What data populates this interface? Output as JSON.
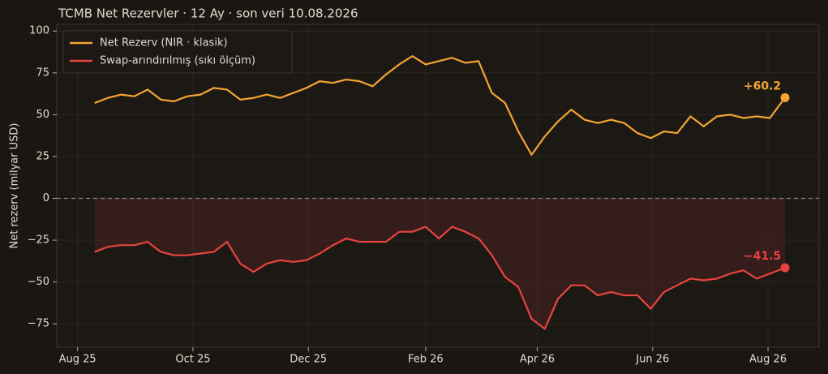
{
  "chart_data": {
    "type": "line",
    "title": "TCMB Net Rezervler · 12 Ay · son veri 10.08.2026",
    "y_label": "Net rezerv (milyar USD)",
    "x": [
      "2025-08-10",
      "2025-08-17",
      "2025-08-24",
      "2025-08-31",
      "2025-09-07",
      "2025-09-14",
      "2025-09-21",
      "2025-09-28",
      "2025-10-05",
      "2025-10-12",
      "2025-10-19",
      "2025-10-26",
      "2025-11-02",
      "2025-11-09",
      "2025-11-16",
      "2025-11-23",
      "2025-11-30",
      "2025-12-07",
      "2025-12-14",
      "2025-12-21",
      "2025-12-28",
      "2026-01-04",
      "2026-01-11",
      "2026-01-18",
      "2026-01-25",
      "2026-02-01",
      "2026-02-08",
      "2026-02-15",
      "2026-02-22",
      "2026-03-01",
      "2026-03-08",
      "2026-03-15",
      "2026-03-22",
      "2026-03-29",
      "2026-04-05",
      "2026-04-12",
      "2026-04-19",
      "2026-04-26",
      "2026-05-03",
      "2026-05-10",
      "2026-05-17",
      "2026-05-24",
      "2026-05-31",
      "2026-06-07",
      "2026-06-14",
      "2026-06-21",
      "2026-06-28",
      "2026-07-05",
      "2026-07-12",
      "2026-07-19",
      "2026-07-26",
      "2026-08-02",
      "2026-08-10"
    ],
    "series": [
      {
        "name": "Net Rezerv (NIR · klasik)",
        "color": "#f5a431",
        "values": [
          57,
          60,
          62,
          61,
          65,
          59,
          58,
          61,
          62,
          66,
          65,
          59,
          60,
          62,
          60,
          63,
          66,
          70,
          69,
          71,
          70,
          67,
          74,
          80,
          85,
          80,
          82,
          84,
          81,
          82,
          63,
          57,
          40,
          26,
          37,
          46,
          53,
          47,
          45,
          47,
          45,
          39,
          36,
          40,
          39,
          49,
          43,
          49,
          50,
          48,
          49,
          48,
          60.2
        ],
        "value_labels": [
          null,
          null,
          null,
          null,
          null,
          null,
          null,
          null,
          null,
          null,
          null,
          null,
          null,
          null,
          null,
          null,
          null,
          null,
          null,
          null,
          null,
          null,
          null,
          null,
          null,
          null,
          null,
          null,
          null,
          null,
          null,
          null,
          null,
          null,
          null,
          null,
          null,
          null,
          null,
          null,
          null,
          null,
          null,
          null,
          null,
          null,
          null,
          null,
          null,
          null,
          null,
          null,
          "+60.2"
        ]
      },
      {
        "name": "Swap-arındırılmış (sıkı ölçüm)",
        "color": "#e8443e",
        "values": [
          -32,
          -29,
          -28,
          -28,
          -26,
          -32,
          -34,
          -34,
          -33,
          -32,
          -26,
          -39,
          -44,
          -39,
          -37,
          -38,
          -37,
          -33,
          -28,
          -24,
          -26,
          -26,
          -26,
          -20,
          -20,
          -17,
          -24,
          -17,
          -20,
          -24,
          -34,
          -47,
          -53,
          -72,
          -78,
          -60,
          -52,
          -52,
          -58,
          -56,
          -58,
          -58,
          -66,
          -56,
          -52,
          -48,
          -49,
          -48,
          -45,
          -43,
          -48,
          -45,
          -41.5
        ],
        "value_labels": [
          null,
          null,
          null,
          null,
          null,
          null,
          null,
          null,
          null,
          null,
          null,
          null,
          null,
          null,
          null,
          null,
          null,
          null,
          null,
          null,
          null,
          null,
          null,
          null,
          null,
          null,
          null,
          null,
          null,
          null,
          null,
          null,
          null,
          null,
          null,
          null,
          null,
          null,
          null,
          null,
          null,
          null,
          null,
          null,
          null,
          null,
          null,
          null,
          null,
          null,
          null,
          null,
          "−41.5"
        ]
      }
    ],
    "xlim": [
      "2025-07-21",
      "2026-08-28"
    ],
    "xticks": [
      {
        "value": "2025-08-01",
        "label": "Aug 25"
      },
      {
        "value": "2025-10-01",
        "label": "Oct 25"
      },
      {
        "value": "2025-12-01",
        "label": "Dec 25"
      },
      {
        "value": "2026-02-01",
        "label": "Feb 26"
      },
      {
        "value": "2026-04-01",
        "label": "Apr 26"
      },
      {
        "value": "2026-06-01",
        "label": "Jun 26"
      },
      {
        "value": "2026-08-01",
        "label": "Aug 26"
      }
    ],
    "ylim": [
      -89,
      104
    ],
    "yticks": [
      {
        "value": -75,
        "label": "−75"
      },
      {
        "value": -50,
        "label": "−50"
      },
      {
        "value": -25,
        "label": "−25"
      },
      0,
      25,
      50,
      75,
      100
    ],
    "reference_line": 0,
    "grid": true,
    "legend": "upper left"
  }
}
